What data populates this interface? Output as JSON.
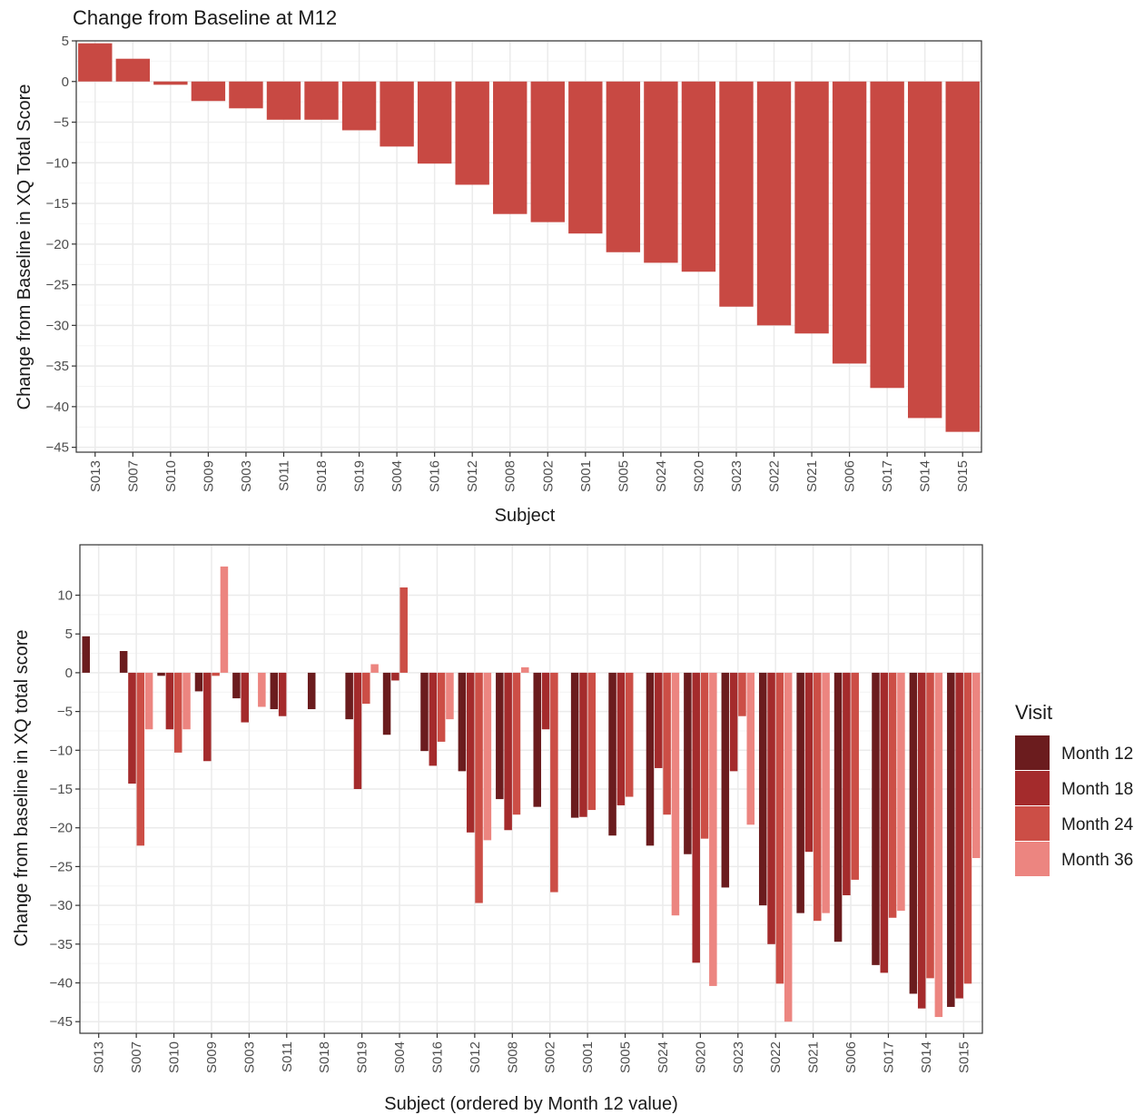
{
  "colors": {
    "bar_top": "#c84943",
    "month12": "#6b1c1e",
    "month18": "#a42b2c",
    "month24": "#cc4e46",
    "month36": "#ec8580",
    "panel_border": "#333333",
    "grid_major": "#ebebeb",
    "grid_minor": "#f4f4f4"
  },
  "chart_data": [
    {
      "type": "bar",
      "title": "Change from Baseline at M12",
      "xlabel": "Subject",
      "ylabel": "Change from Baseline in XQ Total Score",
      "ylim": [
        -45.6,
        5.0
      ],
      "yticks": [
        5,
        0,
        -5,
        -10,
        -15,
        -20,
        -25,
        -30,
        -35,
        -40,
        -45
      ],
      "grid": true,
      "categories": [
        "S013",
        "S007",
        "S010",
        "S009",
        "S003",
        "S011",
        "S018",
        "S019",
        "S004",
        "S016",
        "S012",
        "S008",
        "S002",
        "S001",
        "S005",
        "S024",
        "S020",
        "S023",
        "S022",
        "S021",
        "S006",
        "S017",
        "S014",
        "S015"
      ],
      "values": [
        4.7,
        2.8,
        -0.4,
        -2.4,
        -3.3,
        -4.7,
        -4.7,
        -6.0,
        -8.0,
        -10.1,
        -12.7,
        -16.3,
        -17.3,
        -18.7,
        -21.0,
        -22.3,
        -23.4,
        -27.7,
        -30.0,
        -31.0,
        -34.7,
        -37.7,
        -41.4,
        -43.1
      ]
    },
    {
      "type": "bar",
      "xlabel": "Subject (ordered by Month 12 value)",
      "ylabel": "Change from baseline in XQ total score",
      "ylim": [
        -46.5,
        16.5
      ],
      "yticks": [
        10,
        5,
        0,
        -5,
        -10,
        -15,
        -20,
        -25,
        -30,
        -35,
        -40,
        -45
      ],
      "grid": true,
      "legend": {
        "title": "Visit",
        "placement": "right"
      },
      "categories": [
        "S013",
        "S007",
        "S010",
        "S009",
        "S003",
        "S011",
        "S018",
        "S019",
        "S004",
        "S016",
        "S012",
        "S008",
        "S002",
        "S001",
        "S005",
        "S024",
        "S020",
        "S023",
        "S022",
        "S021",
        "S006",
        "S017",
        "S014",
        "S015"
      ],
      "series": [
        {
          "name": "Month 12",
          "values": [
            4.7,
            2.8,
            -0.4,
            -2.4,
            -3.3,
            -4.7,
            -4.7,
            -6.0,
            -8.0,
            -10.1,
            -12.7,
            -16.3,
            -17.3,
            -18.7,
            -21.0,
            -22.3,
            -23.4,
            -27.7,
            -30.0,
            -31.0,
            -34.7,
            -37.7,
            -41.4,
            -43.1
          ]
        },
        {
          "name": "Month 18",
          "values": [
            null,
            -14.3,
            -7.3,
            -11.4,
            -6.4,
            -5.6,
            null,
            -15.0,
            -1.0,
            -12.0,
            -20.6,
            -20.3,
            -7.3,
            -18.6,
            -17.1,
            -12.3,
            -37.4,
            -12.7,
            -35.0,
            -23.1,
            -28.7,
            -38.7,
            -43.3,
            -42.0
          ]
        },
        {
          "name": "Month 24",
          "values": [
            null,
            -22.3,
            -10.3,
            -0.4,
            null,
            null,
            null,
            -4.0,
            11.0,
            -8.9,
            -29.7,
            -18.3,
            -28.3,
            -17.7,
            -16.0,
            -18.3,
            -21.4,
            -5.6,
            -40.1,
            -32.0,
            -26.7,
            -31.6,
            -39.4,
            -40.1
          ]
        },
        {
          "name": "Month 36",
          "values": [
            null,
            -7.3,
            -7.3,
            13.7,
            -4.4,
            null,
            null,
            1.1,
            null,
            -6.0,
            -21.6,
            0.7,
            null,
            null,
            null,
            -31.3,
            -40.4,
            -19.6,
            -45.0,
            -31.0,
            null,
            -30.7,
            -44.4,
            -23.9
          ]
        }
      ]
    }
  ]
}
